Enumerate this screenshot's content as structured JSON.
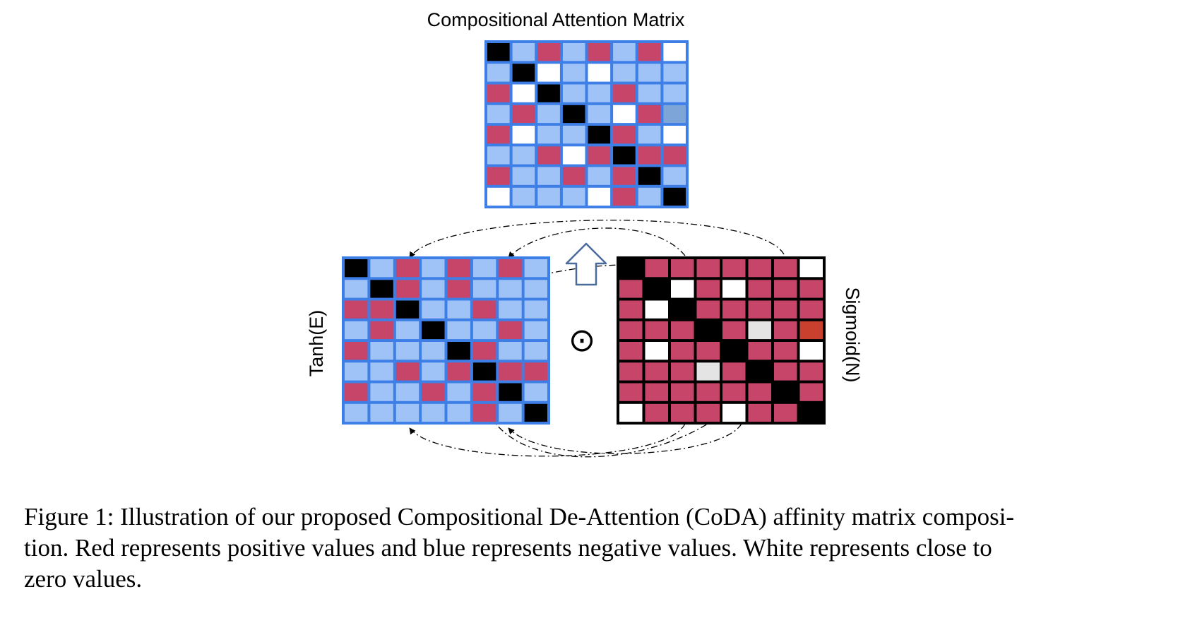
{
  "figure": {
    "title": "Compositional Attention Matrix",
    "left_label": "Tanh(E)",
    "right_label": "Sigmoid(N)",
    "operator": "⊙",
    "up_arrow_icon": "up-arrow-icon",
    "colors": {
      "red": "#c8456a",
      "blue": "#9fc2f7",
      "black": "#000000",
      "white": "#ffffff",
      "grey": "#e4e4e4",
      "orange": "#c9402e",
      "steel": "#7ea5d7",
      "blue_border": "#3d7fe6"
    },
    "legend_codes": {
      "K": "black",
      "B": "blue",
      "R": "red",
      "W": "white",
      "G": "grey",
      "O": "orange",
      "S": "steel"
    },
    "matrices": {
      "composition": [
        "KBRBRBRW",
        "BKWBWBBB",
        "RWKBBRBB",
        "BRBKBWRS",
        "RWBBKRBW",
        "BBRWRKRR",
        "RBBRBRKB",
        "WBBBWRBK"
      ],
      "tanh": [
        "KBRBRBRB",
        "BKRBRBBB",
        "RRKBBRBB",
        "BRBKBBRB",
        "RBBBKRBB",
        "BBRBRKRR",
        "RBBRBRKB",
        "BBBBBRBK"
      ],
      "sigmoid": [
        "KRRRRRRW",
        "RKWRWRRR",
        "RWKRRRRR",
        "RRRKRGRO",
        "RWRRKRRW",
        "RRRGRKRR",
        "RRRRRRKR",
        "WRRRWRRK"
      ]
    }
  },
  "caption": {
    "lines": [
      "Figure 1: Illustration of our proposed Compositional De-Attention (CoDA) affinity matrix composi-",
      "tion. Red represents positive values and blue represents negative values. White represents close to",
      "zero values."
    ]
  }
}
